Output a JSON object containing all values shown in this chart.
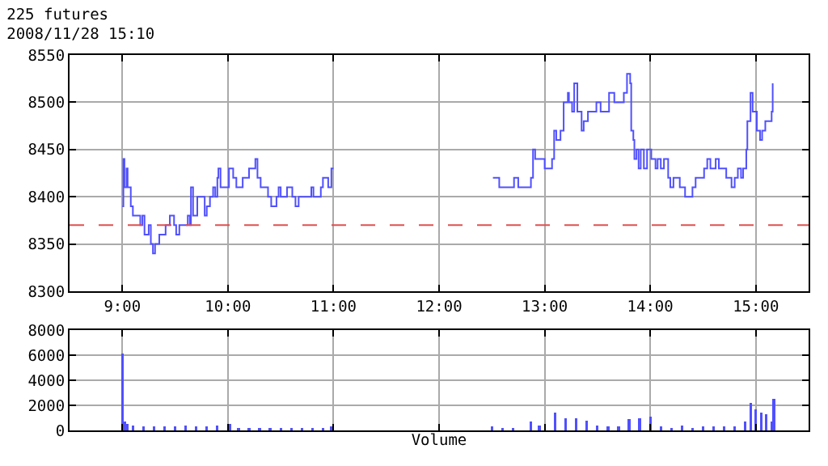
{
  "chart_data": [
    {
      "type": "step",
      "title": "225 futures",
      "subtitle": "2008/11/28 15:10",
      "x": [
        9.0,
        9.01,
        9.02,
        9.04,
        9.05,
        9.08,
        9.1,
        9.17,
        9.19,
        9.21,
        9.25,
        9.27,
        9.29,
        9.31,
        9.35,
        9.41,
        9.45,
        9.49,
        9.51,
        9.54,
        9.62,
        9.64,
        9.65,
        9.67,
        9.71,
        9.74,
        9.78,
        9.8,
        9.83,
        9.86,
        9.88,
        9.9,
        9.91,
        9.93,
        10.01,
        10.05,
        10.08,
        10.14,
        10.2,
        10.26,
        10.28,
        10.31,
        10.38,
        10.41,
        10.46,
        10.48,
        10.5,
        10.56,
        10.61,
        10.64,
        10.67,
        10.79,
        10.81,
        10.88,
        10.9,
        10.95,
        10.98,
        11.0,
        11.5,
        12.51,
        12.57,
        12.71,
        12.75,
        12.87,
        12.89,
        12.91,
        13.0,
        13.07,
        13.09,
        13.11,
        13.15,
        13.18,
        13.22,
        13.23,
        13.26,
        13.28,
        13.31,
        13.35,
        13.37,
        13.41,
        13.49,
        13.53,
        13.61,
        13.66,
        13.75,
        13.78,
        13.81,
        13.82,
        13.84,
        13.85,
        13.87,
        13.89,
        13.91,
        13.94,
        13.97,
        14.01,
        14.05,
        14.07,
        14.1,
        14.13,
        14.17,
        14.19,
        14.22,
        14.28,
        14.33,
        14.4,
        14.43,
        14.51,
        14.54,
        14.57,
        14.62,
        14.65,
        14.72,
        14.77,
        14.8,
        14.83,
        14.86,
        14.88,
        14.91,
        14.92,
        14.95,
        14.97,
        15.01,
        15.04,
        15.06,
        15.09,
        15.15,
        15.16
      ],
      "series": [
        {
          "color": "#5050ff",
          "values": [
            8390,
            8440,
            8410,
            8430,
            8410,
            8390,
            8380,
            8370,
            8380,
            8360,
            8370,
            8350,
            8340,
            8350,
            8360,
            8370,
            8380,
            8370,
            8360,
            8370,
            8380,
            8370,
            8410,
            8380,
            8400,
            8400,
            8380,
            8390,
            8400,
            8410,
            8400,
            8420,
            8430,
            8410,
            8430,
            8420,
            8410,
            8420,
            8430,
            8440,
            8420,
            8410,
            8400,
            8390,
            8400,
            8410,
            8400,
            8410,
            8400,
            8390,
            8400,
            8410,
            8400,
            8410,
            8420,
            8410,
            8430,
            8430,
            null,
            8420,
            8410,
            8420,
            8410,
            8420,
            8450,
            8440,
            8430,
            8440,
            8470,
            8460,
            8470,
            8500,
            8510,
            8500,
            8490,
            8520,
            8490,
            8470,
            8480,
            8490,
            8500,
            8490,
            8510,
            8500,
            8510,
            8530,
            8520,
            8470,
            8460,
            8440,
            8450,
            8430,
            8450,
            8430,
            8450,
            8440,
            8430,
            8440,
            8430,
            8440,
            8420,
            8410,
            8420,
            8410,
            8400,
            8410,
            8420,
            8430,
            8440,
            8430,
            8440,
            8430,
            8420,
            8410,
            8420,
            8430,
            8420,
            8430,
            8450,
            8480,
            8510,
            8490,
            8470,
            8460,
            8470,
            8480,
            8490,
            8520
          ]
        }
      ],
      "xlim": [
        8.5,
        15.5
      ],
      "xticks": [
        {
          "value": 9,
          "label": "9:00"
        },
        {
          "value": 10,
          "label": "10:00"
        },
        {
          "value": 11,
          "label": "11:00"
        },
        {
          "value": 12,
          "label": "12:00"
        },
        {
          "value": 13,
          "label": "13:00"
        },
        {
          "value": 14,
          "label": "14:00"
        },
        {
          "value": 15,
          "label": "15:00"
        }
      ],
      "ylim": [
        8300,
        8550
      ],
      "yticks": [
        8300,
        8350,
        8400,
        8450,
        8500,
        8550
      ],
      "grid": true,
      "line_style": "solid",
      "ref_lines": [
        {
          "axis": "y",
          "value": 8370,
          "color": "#e05050",
          "line_style": "dashed"
        }
      ]
    },
    {
      "type": "bar",
      "xlabel": "Volume",
      "x": [
        9.0,
        9.02,
        9.05,
        9.1,
        9.2,
        9.3,
        9.4,
        9.5,
        9.6,
        9.7,
        9.8,
        9.9,
        10.02,
        10.1,
        10.2,
        10.3,
        10.4,
        10.5,
        10.6,
        10.7,
        10.8,
        10.9,
        10.98,
        12.5,
        12.6,
        12.7,
        12.87,
        12.95,
        13.1,
        13.2,
        13.3,
        13.4,
        13.5,
        13.6,
        13.7,
        13.8,
        13.9,
        14.0,
        14.1,
        14.2,
        14.3,
        14.4,
        14.5,
        14.6,
        14.7,
        14.8,
        14.9,
        14.95,
        15.0,
        15.05,
        15.1,
        15.15,
        15.17
      ],
      "series": [
        {
          "color": "#5050ff",
          "values": [
            6100,
            700,
            500,
            400,
            300,
            300,
            300,
            300,
            400,
            300,
            300,
            400,
            500,
            200,
            200,
            200,
            200,
            200,
            200,
            200,
            200,
            200,
            300,
            300,
            200,
            200,
            700,
            400,
            1400,
            1000,
            1000,
            800,
            400,
            300,
            300,
            900,
            1000,
            1100,
            300,
            200,
            400,
            200,
            300,
            300,
            300,
            300,
            700,
            2200,
            1700,
            1400,
            1300,
            700,
            2500
          ]
        }
      ],
      "xlim": [
        8.5,
        15.5
      ],
      "xticks": [
        9,
        10,
        11,
        12,
        13,
        14,
        15
      ],
      "ylim": [
        0,
        8000
      ],
      "yticks": [
        0,
        2000,
        4000,
        6000,
        8000
      ],
      "grid": true,
      "tick_labels": "y"
    }
  ]
}
